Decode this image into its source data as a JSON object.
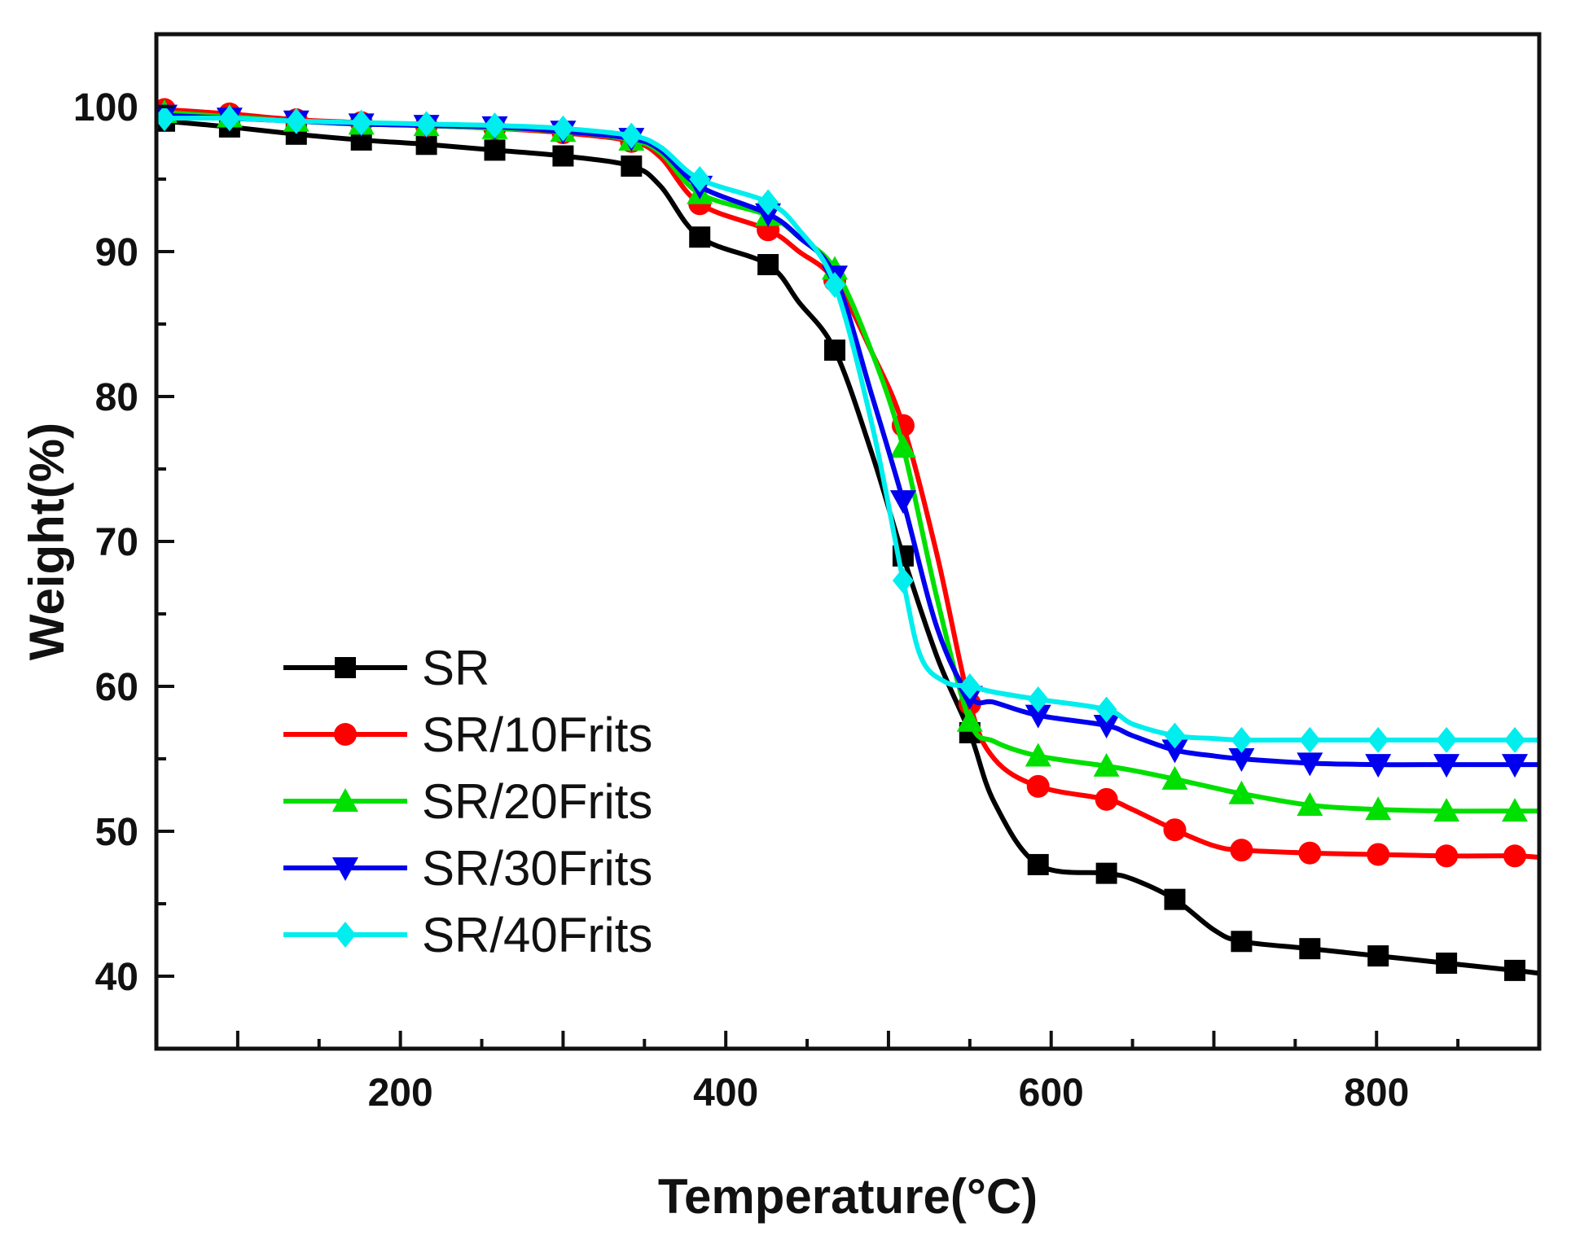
{
  "chart_data": {
    "type": "line",
    "title": "",
    "xlabel": "Temperature(°C)",
    "ylabel": "Weight(%)",
    "xlim": [
      50,
      900
    ],
    "ylim": [
      35,
      105
    ],
    "xticks": [
      200,
      400,
      600,
      800
    ],
    "yticks": [
      40,
      50,
      60,
      70,
      80,
      90,
      100
    ],
    "grid": false,
    "legend_position": "lower-left",
    "marker_x": [
      55,
      95,
      136,
      176,
      216,
      258,
      300,
      342,
      384,
      426,
      467,
      509,
      550,
      592,
      634,
      676,
      717,
      759,
      801,
      843,
      885
    ],
    "series": [
      {
        "name": "SR",
        "color": "#000000",
        "marker": "square",
        "x": [
          55,
          95,
          136,
          176,
          216,
          258,
          300,
          342,
          360,
          384,
          426,
          445,
          467,
          490,
          509,
          530,
          550,
          565,
          592,
          634,
          650,
          676,
          700,
          717,
          759,
          801,
          843,
          885,
          900
        ],
        "y": [
          99.0,
          98.6,
          98.1,
          97.7,
          97.4,
          97.0,
          96.6,
          95.9,
          94.5,
          91.0,
          89.1,
          86.5,
          83.2,
          76.0,
          69.0,
          62.0,
          56.8,
          52.0,
          47.7,
          47.1,
          46.7,
          45.3,
          43.2,
          42.4,
          41.9,
          41.4,
          40.9,
          40.4,
          40.2
        ]
      },
      {
        "name": "SR/10Frits",
        "color": "#ff0000",
        "marker": "circle",
        "x": [
          55,
          95,
          136,
          176,
          216,
          258,
          300,
          342,
          360,
          384,
          426,
          445,
          467,
          490,
          509,
          530,
          550,
          565,
          592,
          634,
          650,
          676,
          700,
          717,
          759,
          801,
          843,
          885,
          900
        ],
        "y": [
          99.8,
          99.5,
          99.1,
          98.9,
          98.7,
          98.5,
          98.2,
          97.6,
          96.5,
          93.3,
          91.5,
          90.0,
          88.0,
          83.0,
          78.0,
          69.0,
          58.8,
          55.0,
          53.1,
          52.2,
          51.5,
          50.1,
          49.0,
          48.7,
          48.5,
          48.4,
          48.3,
          48.3,
          48.2
        ]
      },
      {
        "name": "SR/20Frits",
        "color": "#00e000",
        "marker": "triangle-up",
        "x": [
          55,
          95,
          136,
          176,
          216,
          258,
          300,
          342,
          360,
          384,
          426,
          445,
          467,
          490,
          509,
          530,
          550,
          565,
          592,
          634,
          650,
          676,
          700,
          717,
          759,
          801,
          843,
          885,
          900
        ],
        "y": [
          99.6,
          99.3,
          99.0,
          98.8,
          98.7,
          98.5,
          98.3,
          97.7,
          96.8,
          94.0,
          92.5,
          91.0,
          88.8,
          83.0,
          76.5,
          66.0,
          57.6,
          56.2,
          55.2,
          54.5,
          54.2,
          53.6,
          53.0,
          52.6,
          51.8,
          51.5,
          51.4,
          51.4,
          51.4
        ]
      },
      {
        "name": "SR/30Frits",
        "color": "#0000ee",
        "marker": "triangle-down",
        "x": [
          55,
          95,
          136,
          176,
          216,
          258,
          300,
          342,
          360,
          384,
          426,
          445,
          467,
          490,
          509,
          530,
          550,
          565,
          592,
          634,
          650,
          676,
          700,
          717,
          759,
          801,
          843,
          885,
          900
        ],
        "y": [
          99.4,
          99.2,
          99.0,
          98.8,
          98.7,
          98.6,
          98.3,
          97.8,
          97.0,
          94.5,
          92.6,
          91.0,
          88.3,
          80.0,
          72.8,
          64.0,
          59.3,
          58.9,
          58.0,
          57.3,
          56.6,
          55.6,
          55.2,
          55.0,
          54.7,
          54.6,
          54.6,
          54.6,
          54.6
        ]
      },
      {
        "name": "SR/40Frits",
        "color": "#00eeee",
        "marker": "diamond",
        "x": [
          55,
          95,
          136,
          176,
          216,
          258,
          300,
          342,
          360,
          384,
          426,
          445,
          467,
          490,
          509,
          520,
          535,
          550,
          565,
          592,
          634,
          650,
          676,
          700,
          717,
          759,
          801,
          843,
          885,
          900
        ],
        "y": [
          99.2,
          99.2,
          99.0,
          98.9,
          98.8,
          98.7,
          98.5,
          98.0,
          97.2,
          95.0,
          93.4,
          91.5,
          87.7,
          78.0,
          67.3,
          62.0,
          60.3,
          60.0,
          59.6,
          59.1,
          58.4,
          57.4,
          56.6,
          56.4,
          56.3,
          56.3,
          56.3,
          56.3,
          56.3,
          56.3
        ]
      }
    ]
  }
}
